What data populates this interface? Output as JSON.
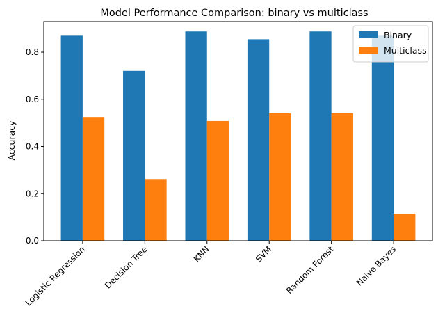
{
  "chart_data": {
    "type": "bar",
    "title": "Model Performance Comparison: binary vs multiclass",
    "xlabel": "",
    "ylabel": "Accuracy",
    "categories": [
      "Logistic Regression",
      "Decision Tree",
      "KNN",
      "SVM",
      "Random Forest",
      "Naive Bayes"
    ],
    "series": [
      {
        "name": "Binary",
        "color": "#1f77b4",
        "values": [
          0.87,
          0.721,
          0.888,
          0.855,
          0.888,
          0.87
        ]
      },
      {
        "name": "Multiclass",
        "color": "#ff7f0e",
        "values": [
          0.525,
          0.262,
          0.508,
          0.541,
          0.541,
          0.115
        ]
      }
    ],
    "ylim": [
      0,
      0.93
    ],
    "yticks": [
      0.0,
      0.2,
      0.4,
      0.6,
      0.8
    ],
    "ytick_labels": [
      "0.0",
      "0.2",
      "0.4",
      "0.6",
      "0.8"
    ],
    "grid": false,
    "legend_position": "top-right"
  }
}
